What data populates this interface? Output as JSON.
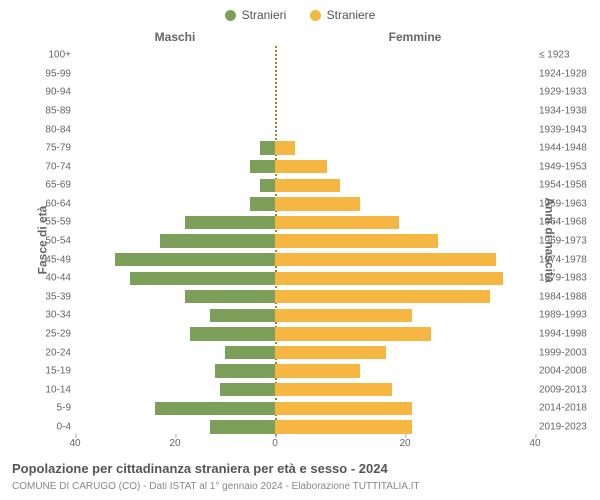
{
  "legend": {
    "male": {
      "label": "Stranieri",
      "color": "#7ca05a"
    },
    "female": {
      "label": "Straniere",
      "color": "#f5b642"
    }
  },
  "columns": {
    "left": "Maschi",
    "right": "Femmine"
  },
  "axis_titles": {
    "left": "Fasce di età",
    "right": "Anni di nascita"
  },
  "chart": {
    "type": "population-pyramid",
    "x_max": 40,
    "x_ticks_left": [
      "40",
      "20"
    ],
    "x_ticks_right": [
      "0",
      "20",
      "40"
    ],
    "background_color": "#ffffff",
    "centerline_color": "#8a8a2a",
    "tick_color": "#666666",
    "rows": [
      {
        "age": "100+",
        "year": "≤ 1923",
        "m": 0,
        "f": 0
      },
      {
        "age": "95-99",
        "year": "1924-1928",
        "m": 0,
        "f": 0
      },
      {
        "age": "90-94",
        "year": "1929-1933",
        "m": 0,
        "f": 0
      },
      {
        "age": "85-89",
        "year": "1934-1938",
        "m": 0,
        "f": 0
      },
      {
        "age": "80-84",
        "year": "1939-1943",
        "m": 0,
        "f": 0
      },
      {
        "age": "75-79",
        "year": "1944-1948",
        "m": 3,
        "f": 3
      },
      {
        "age": "70-74",
        "year": "1949-1953",
        "m": 5,
        "f": 8
      },
      {
        "age": "65-69",
        "year": "1954-1958",
        "m": 3,
        "f": 10
      },
      {
        "age": "60-64",
        "year": "1959-1963",
        "m": 5,
        "f": 13
      },
      {
        "age": "55-59",
        "year": "1964-1968",
        "m": 18,
        "f": 19
      },
      {
        "age": "50-54",
        "year": "1969-1973",
        "m": 23,
        "f": 25
      },
      {
        "age": "45-49",
        "year": "1974-1978",
        "m": 32,
        "f": 34
      },
      {
        "age": "40-44",
        "year": "1979-1983",
        "m": 29,
        "f": 35
      },
      {
        "age": "35-39",
        "year": "1984-1988",
        "m": 18,
        "f": 33
      },
      {
        "age": "30-34",
        "year": "1989-1993",
        "m": 13,
        "f": 21
      },
      {
        "age": "25-29",
        "year": "1994-1998",
        "m": 17,
        "f": 24
      },
      {
        "age": "20-24",
        "year": "1999-2003",
        "m": 10,
        "f": 17
      },
      {
        "age": "15-19",
        "year": "2004-2008",
        "m": 12,
        "f": 13
      },
      {
        "age": "10-14",
        "year": "2009-2013",
        "m": 11,
        "f": 18
      },
      {
        "age": "5-9",
        "year": "2014-2018",
        "m": 24,
        "f": 21
      },
      {
        "age": "0-4",
        "year": "2019-2023",
        "m": 13,
        "f": 21
      }
    ]
  },
  "title": "Popolazione per cittadinanza straniera per età e sesso - 2024",
  "subtitle": "COMUNE DI CARUGO (CO) - Dati ISTAT al 1° gennaio 2024 - Elaborazione TUTTITALIA.IT"
}
